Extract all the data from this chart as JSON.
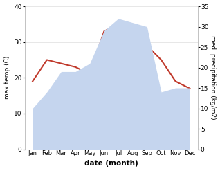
{
  "months": [
    "Jan",
    "Feb",
    "Mar",
    "Apr",
    "May",
    "Jun",
    "Jul",
    "Aug",
    "Sep",
    "Oct",
    "Nov",
    "Dec"
  ],
  "temperature": [
    19,
    25,
    24,
    23,
    21,
    33,
    35,
    34,
    29,
    25,
    19,
    17
  ],
  "precipitation": [
    10,
    14,
    19,
    19,
    21,
    29,
    32,
    31,
    30,
    14,
    15,
    15
  ],
  "temp_color": "#c0392b",
  "precip_color": "#c5d5ee",
  "left_ylim": [
    0,
    40
  ],
  "right_ylim": [
    0,
    35
  ],
  "left_yticks": [
    0,
    10,
    20,
    30,
    40
  ],
  "right_yticks": [
    0,
    5,
    10,
    15,
    20,
    25,
    30,
    35
  ],
  "left_ylabel": "max temp (C)",
  "right_ylabel": "med. precipitation (kg/m2)",
  "xlabel": "date (month)",
  "bg_color": "#ffffff",
  "grid_color": "#dddddd"
}
